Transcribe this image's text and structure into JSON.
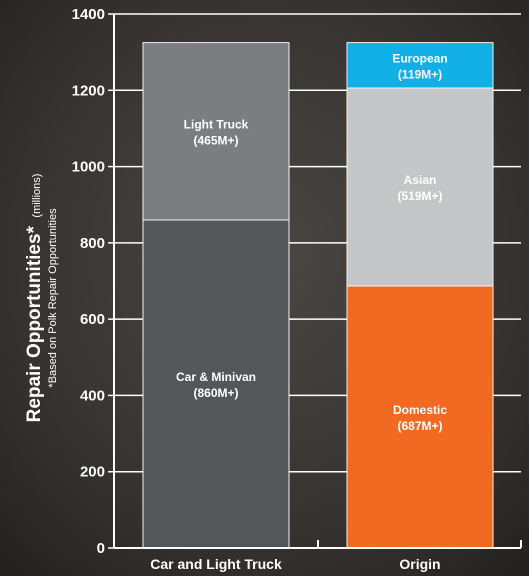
{
  "chart_data": {
    "type": "bar",
    "stacked": true,
    "ylabel": "Repair Opportunities*",
    "ylabel_unit": "(millions)",
    "ylabel_note": "*Based on Polk Repair Opportunities",
    "ylim": [
      0,
      1400
    ],
    "yticks": [
      0,
      200,
      400,
      600,
      800,
      1000,
      1200,
      1400
    ],
    "grid": true,
    "categories": [
      "Car and Light Truck",
      "Origin"
    ],
    "stacks": [
      {
        "category": "Car and Light Truck",
        "segments": [
          {
            "name": "Car & Minivan",
            "value": 860,
            "label": "(860M+)",
            "color": "#54565a",
            "text_color": "#ffffff"
          },
          {
            "name": "Light Truck",
            "value": 465,
            "label": "(465M+)",
            "color": "#7b7d80",
            "text_color": "#ffffff"
          }
        ]
      },
      {
        "category": "Origin",
        "segments": [
          {
            "name": "Domestic",
            "value": 687,
            "label": "(687M+)",
            "color": "#f26a21",
            "text_color": "#ffffff"
          },
          {
            "name": "Asian",
            "value": 519,
            "label": "(519M+)",
            "color": "#c5c6c8",
            "text_color": "#ffffff"
          },
          {
            "name": "European",
            "value": 119,
            "label": "(119M+)",
            "color": "#12aee6",
            "text_color": "#ffffff"
          }
        ]
      }
    ],
    "colors": {
      "axis": "#ffffff",
      "grid": "#ffffff"
    }
  }
}
